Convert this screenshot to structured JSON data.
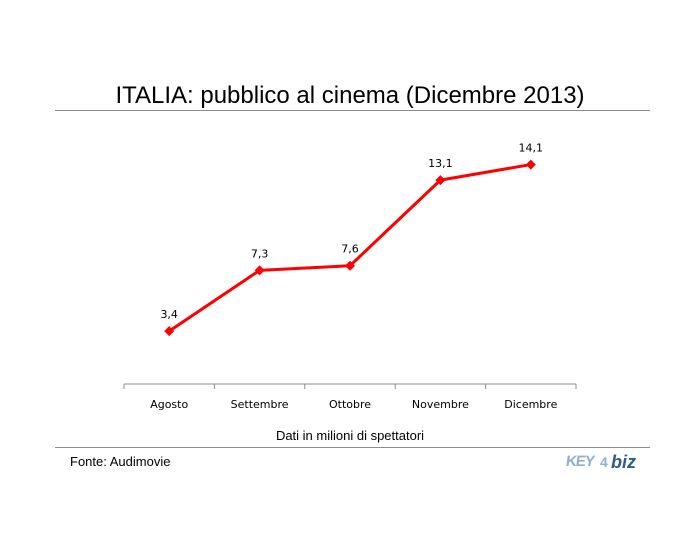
{
  "chart_data": {
    "type": "line",
    "title": "ITALIA: pubblico al cinema (Dicembre 2013)",
    "xlabel": "Dati in milioni di spettatori",
    "ylabel": "",
    "categories": [
      "Agosto",
      "Settembre",
      "Ottobre",
      "Novembre",
      "Dicembre"
    ],
    "series": [
      {
        "values": [
          3.4,
          7.3,
          7.6,
          13.1,
          14.1
        ],
        "labels": [
          "3,4",
          "7,3",
          "7,6",
          "13,1",
          "14,1"
        ]
      }
    ],
    "ylim": [
      0,
      16
    ],
    "grid": false,
    "legend": "none",
    "colors": {
      "line": "#ff0000",
      "axis": "#8c8c8c"
    }
  },
  "footer": {
    "source": "Fonte: Audimovie",
    "logo": {
      "key": "KEY",
      "four": "4",
      "biz": "biz"
    }
  }
}
